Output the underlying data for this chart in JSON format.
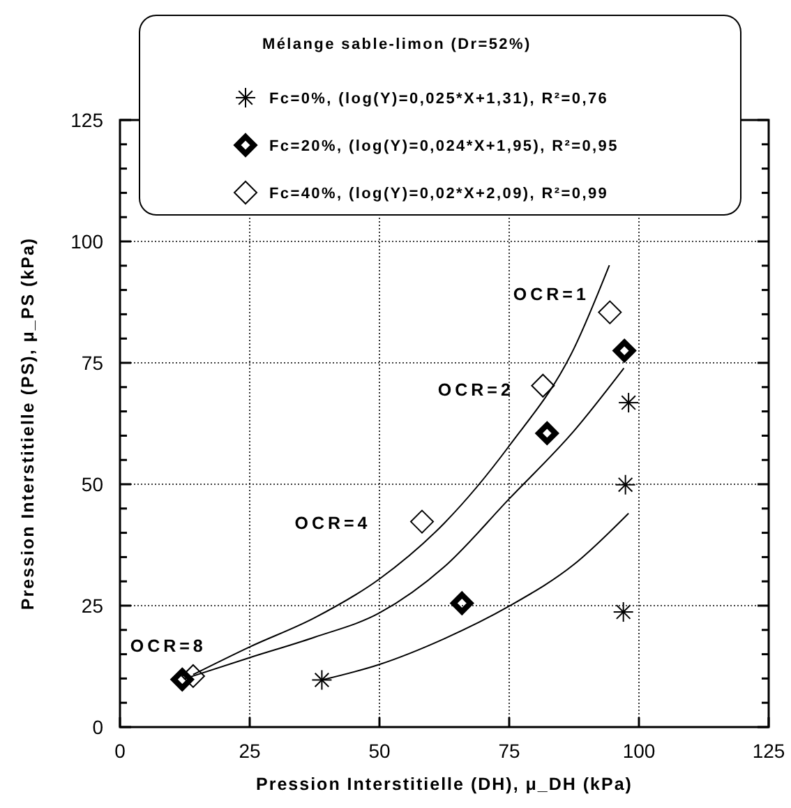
{
  "chart_data": {
    "type": "scatter",
    "xlabel": "Pression Interstitielle (DH), μ_DH (kPa)",
    "ylabel": "Pression Interstitielle (PS), μ_PS (kPa)",
    "legend_title": "Mélange sable-limon (Dr=52%)",
    "legend": "top",
    "grid": true,
    "xlim": [
      0,
      125
    ],
    "xticks": [
      0,
      25,
      50,
      75,
      100,
      125
    ],
    "ylim": [
      0,
      125
    ],
    "yticks": [
      0,
      {
        "value": 5,
        "label": null
      },
      {
        "value": 10,
        "label": null
      },
      {
        "value": 15,
        "label": null
      },
      {
        "value": 20,
        "label": null
      },
      25,
      {
        "value": 30,
        "label": null
      },
      {
        "value": 35,
        "label": null
      },
      {
        "value": 40,
        "label": null
      },
      {
        "value": 45,
        "label": null
      },
      50,
      {
        "value": 55,
        "label": null
      },
      {
        "value": 60,
        "label": null
      },
      {
        "value": 65,
        "label": null
      },
      {
        "value": 70,
        "label": null
      },
      75,
      {
        "value": 80,
        "label": null
      },
      {
        "value": 85,
        "label": null
      },
      {
        "value": 90,
        "label": null
      },
      {
        "value": 95,
        "label": null
      },
      100,
      {
        "value": 105,
        "label": null
      },
      {
        "value": 110,
        "label": null
      },
      {
        "value": 115,
        "label": null
      },
      {
        "value": 120,
        "label": null
      },
      125
    ],
    "series": [
      {
        "name": "Fc=0%, (log(Y)=0,025*X+1,31), R²=0,76",
        "color": "#000000",
        "marker": "cross",
        "x": [
          38.9,
          97,
          97.4,
          98
        ],
        "values": [
          9.7,
          23.7,
          49.9,
          66.8
        ]
      },
      {
        "name": "Fc=20%, (log(Y)=0,024*X+1,95), R²=0,95",
        "color": "#000000",
        "marker": "diamond",
        "x": [
          12,
          65.9,
          82.3,
          97.2
        ],
        "values": [
          9.8,
          25.5,
          60.5,
          77.5
        ]
      },
      {
        "name": "Fc=40%, (log(Y)=0,02*X+2,09), R²=0,99",
        "color": "#000000",
        "marker": "diamond",
        "x": [
          14.1,
          58.2,
          81.5,
          94.4
        ],
        "values": [
          10.5,
          42.3,
          70.3,
          85.4
        ]
      },
      {
        "type": "line",
        "color": "#000000",
        "marker": "none",
        "x": [
          38.9,
          50,
          62.5,
          75,
          87.5,
          98
        ],
        "values": [
          9.7,
          12.9,
          18.2,
          24.9,
          33.5,
          44
        ]
      },
      {
        "type": "line",
        "color": "#000000",
        "marker": "none",
        "x": [
          12.3,
          25,
          37.5,
          50,
          62.5,
          75,
          87.5,
          97.1
        ],
        "values": [
          9.9,
          14.3,
          18.5,
          23.5,
          33,
          47,
          61,
          73.9
        ]
      },
      {
        "type": "line",
        "color": "#000000",
        "marker": "none",
        "x": [
          14.1,
          25,
          37.5,
          50,
          62.5,
          75,
          87.5,
          94.3
        ],
        "values": [
          10.8,
          16.5,
          22.5,
          30.5,
          42,
          57.9,
          78,
          95.1
        ]
      }
    ],
    "annotations": [
      {
        "text": "OCR=1",
        "x": 94.4,
        "y": 85.4
      },
      {
        "text": "OCR=2",
        "x": 81.5,
        "y": 70.3
      },
      {
        "text": "OCR=4",
        "x": 58.2,
        "y": 42.3
      },
      {
        "text": "OCR=8",
        "x": 12,
        "y": 9.8
      }
    ]
  }
}
